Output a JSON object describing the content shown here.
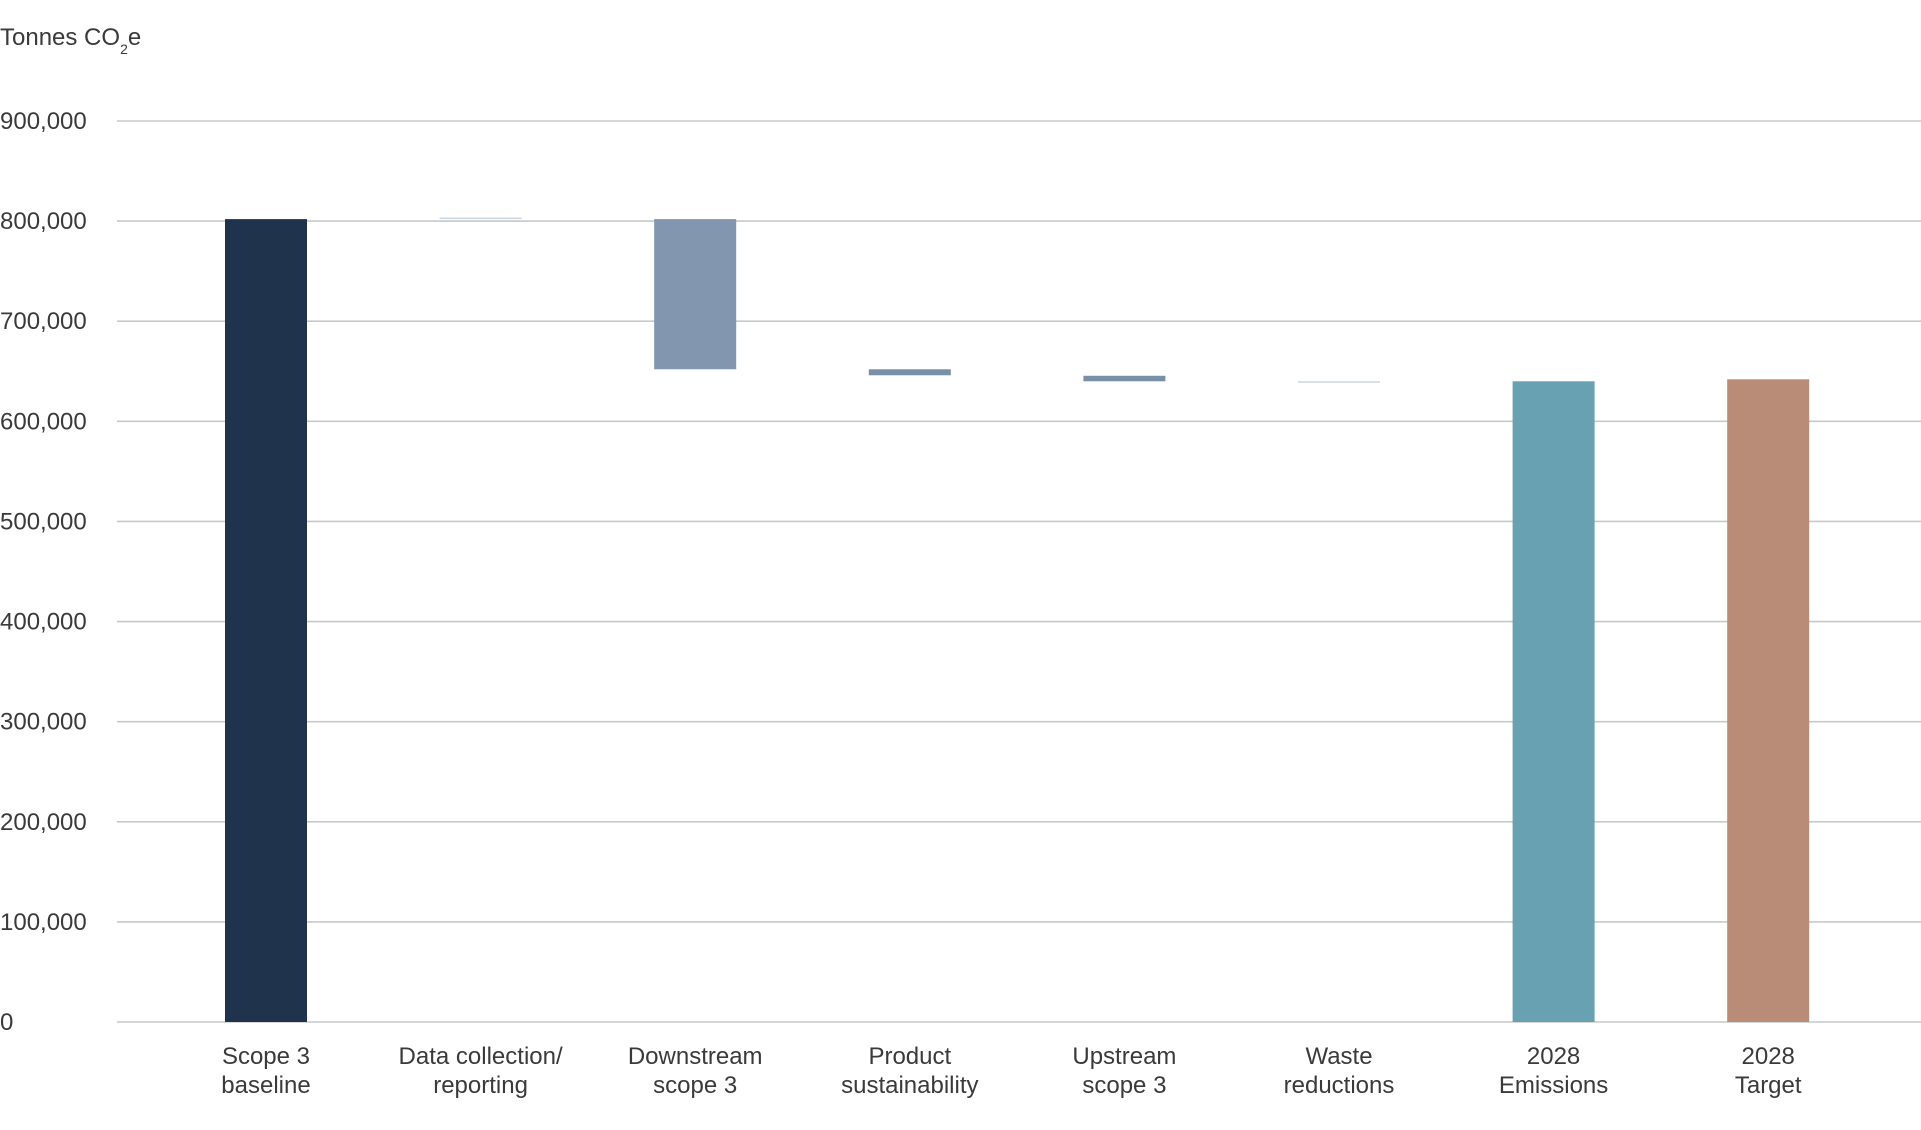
{
  "chart_data": {
    "type": "bar",
    "variant": "waterfall",
    "ylabel_parts": [
      "Tonnes CO",
      "2",
      "e"
    ],
    "ylim": [
      0,
      900000
    ],
    "yticks": [
      0,
      100000,
      200000,
      300000,
      400000,
      500000,
      600000,
      700000,
      800000,
      900000
    ],
    "ytick_labels": [
      "0",
      "100,000",
      "200,000",
      "300,000",
      "400,000",
      "500,000",
      "600,000",
      "700,000",
      "800,000",
      "900,000"
    ],
    "grid": true,
    "categories": [
      [
        "Scope 3",
        "baseline"
      ],
      [
        "Data collection/",
        "reporting"
      ],
      [
        "Downstream",
        "scope 3"
      ],
      [
        "Product",
        "sustainability"
      ],
      [
        "Upstream",
        "scope 3"
      ],
      [
        "Waste",
        "reductions"
      ],
      [
        "2028",
        "Emissions"
      ],
      [
        "2028",
        "Target"
      ]
    ],
    "bars": [
      {
        "kind": "total",
        "start": 0,
        "end": 802000,
        "color": "#1f334d"
      },
      {
        "kind": "change",
        "start": 802000,
        "end": 803500,
        "color": "#c9d6e0"
      },
      {
        "kind": "change",
        "start": 802000,
        "end": 652000,
        "color": "#8296af"
      },
      {
        "kind": "change",
        "start": 652000,
        "end": 646000,
        "color": "#7a90a6"
      },
      {
        "kind": "change",
        "start": 645500,
        "end": 640000,
        "color": "#7a90a6"
      },
      {
        "kind": "change",
        "start": 640000,
        "end": 639000,
        "color": "#c9d6e0"
      },
      {
        "kind": "total",
        "start": 0,
        "end": 640000,
        "color": "#67a1b2"
      },
      {
        "kind": "total",
        "start": 0,
        "end": 642000,
        "color": "#b98c78"
      }
    ],
    "colors": {
      "axis_text": "#3a3a3a",
      "grid": "#c6c9cc"
    }
  }
}
